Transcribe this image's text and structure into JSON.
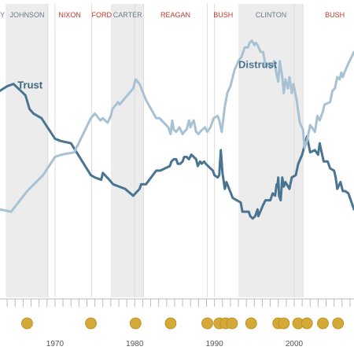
{
  "chart_data": {
    "type": "line",
    "xlim": [
      1963.1,
      2007.5
    ],
    "ylim": [
      0,
      100
    ],
    "x_ticks": [
      {
        "value": 1970,
        "label": "1970"
      },
      {
        "value": 1980,
        "label": "1980"
      },
      {
        "value": 1990,
        "label": "1990"
      },
      {
        "value": 2000,
        "label": "2000"
      }
    ],
    "presidencies": [
      {
        "label": "DY",
        "start": 1961.1,
        "end": 1963.9,
        "shaded": false,
        "party": "democrat"
      },
      {
        "label": "JOHNSON",
        "start": 1963.9,
        "end": 1969.1,
        "shaded": true,
        "party": "democrat"
      },
      {
        "label": "NIXON",
        "start": 1969.1,
        "end": 1974.6,
        "shaded": false,
        "party": "republican"
      },
      {
        "label": "FORD",
        "start": 1974.6,
        "end": 1977.1,
        "shaded": false,
        "party": "republican"
      },
      {
        "label": "CARTER",
        "start": 1977.1,
        "end": 1981.1,
        "shaded": true,
        "party": "democrat"
      },
      {
        "label": "REAGAN",
        "start": 1981.1,
        "end": 1989.1,
        "shaded": false,
        "party": "republican"
      },
      {
        "label": "BUSH",
        "start": 1989.1,
        "end": 1993.1,
        "shaded": false,
        "party": "republican"
      },
      {
        "label": "CLINTON",
        "start": 1993.1,
        "end": 2001.1,
        "shaded": true,
        "party": "democrat"
      },
      {
        "label": "BUSH",
        "start": 2001.1,
        "end": 2009.1,
        "shaded": false,
        "party": "republican"
      }
    ],
    "series": [
      {
        "name": "Trust",
        "color": "#4a7592",
        "points": [
          [
            1963.1,
            74
          ],
          [
            1964.0,
            76
          ],
          [
            1964.8,
            77
          ],
          [
            1966.3,
            72
          ],
          [
            1966.8,
            66
          ],
          [
            1967.3,
            64
          ],
          [
            1968.3,
            62
          ],
          [
            1970.0,
            53
          ],
          [
            1970.7,
            52
          ],
          [
            1972.0,
            51
          ],
          [
            1974.5,
            37
          ],
          [
            1975.0,
            36
          ],
          [
            1975.8,
            35
          ],
          [
            1976.0,
            38
          ],
          [
            1976.8,
            35
          ],
          [
            1977.3,
            33
          ],
          [
            1978.8,
            31
          ],
          [
            1979.8,
            28
          ],
          [
            1980.6,
            31
          ],
          [
            1980.8,
            33
          ],
          [
            1981.4,
            33
          ],
          [
            1982.7,
            39
          ],
          [
            1983.2,
            39
          ],
          [
            1984.4,
            41
          ],
          [
            1984.6,
            43
          ],
          [
            1984.9,
            44
          ],
          [
            1985.2,
            44
          ],
          [
            1985.4,
            42
          ],
          [
            1985.7,
            42
          ],
          [
            1986.0,
            43
          ],
          [
            1986.2,
            45
          ],
          [
            1986.5,
            45
          ],
          [
            1986.8,
            44
          ],
          [
            1987.1,
            46
          ],
          [
            1987.4,
            45
          ],
          [
            1987.7,
            44
          ],
          [
            1987.9,
            41
          ],
          [
            1988.2,
            43
          ],
          [
            1988.4,
            42
          ],
          [
            1988.7,
            43
          ],
          [
            1988.9,
            42
          ],
          [
            1989.8,
            39
          ],
          [
            1990.0,
            37
          ],
          [
            1990.4,
            36
          ],
          [
            1990.6,
            37
          ],
          [
            1990.8,
            48
          ],
          [
            1991.0,
            38
          ],
          [
            1991.3,
            31
          ],
          [
            1991.5,
            34
          ],
          [
            1992.3,
            27
          ],
          [
            1992.8,
            26
          ],
          [
            1993.3,
            25
          ],
          [
            1993.5,
            21
          ],
          [
            1994.3,
            21
          ],
          [
            1994.5,
            19
          ],
          [
            1994.8,
            18
          ],
          [
            1995.1,
            19
          ],
          [
            1995.4,
            22
          ],
          [
            1995.5,
            19
          ],
          [
            1996.1,
            24
          ],
          [
            1996.4,
            26
          ],
          [
            1996.7,
            26
          ],
          [
            1997.0,
            26
          ],
          [
            1997.3,
            29
          ],
          [
            1997.6,
            28
          ],
          [
            1997.8,
            33
          ],
          [
            1997.9,
            32
          ],
          [
            1998.0,
            36
          ],
          [
            1998.1,
            28
          ],
          [
            1998.3,
            26
          ],
          [
            1998.5,
            36
          ],
          [
            1998.7,
            32
          ],
          [
            1998.9,
            34
          ],
          [
            1999.4,
            31
          ],
          [
            1999.7,
            36
          ],
          [
            2000.2,
            37
          ],
          [
            2000.5,
            42
          ],
          [
            2001.0,
            46
          ],
          [
            2001.6,
            54
          ],
          [
            2002.0,
            47
          ],
          [
            2002.6,
            48
          ],
          [
            2003.0,
            46
          ],
          [
            2003.2,
            51
          ],
          [
            2003.5,
            46
          ],
          [
            2003.7,
            43
          ],
          [
            2004.2,
            43
          ],
          [
            2004.5,
            40
          ],
          [
            2005.0,
            39
          ],
          [
            2005.2,
            36
          ],
          [
            2005.4,
            31
          ],
          [
            2005.8,
            34
          ],
          [
            2006.1,
            30
          ],
          [
            2006.4,
            30
          ],
          [
            2006.8,
            29
          ],
          [
            2007.5,
            22
          ]
        ]
      },
      {
        "name": "Distrust",
        "color": "#a8c2d4",
        "points": [
          [
            1963.1,
            22
          ],
          [
            1964.5,
            21
          ],
          [
            1966.5,
            30
          ],
          [
            1968.5,
            37
          ],
          [
            1970.0,
            45
          ],
          [
            1970.8,
            46
          ],
          [
            1972.4,
            47
          ],
          [
            1974.5,
            62
          ],
          [
            1975.0,
            64
          ],
          [
            1975.7,
            61
          ],
          [
            1976.0,
            62
          ],
          [
            1976.6,
            60
          ],
          [
            1977.0,
            63
          ],
          [
            1977.2,
            66
          ],
          [
            1977.9,
            69
          ],
          [
            1978.1,
            68
          ],
          [
            1979.8,
            75
          ],
          [
            1980.1,
            79
          ],
          [
            1980.6,
            77
          ],
          [
            1981.4,
            70
          ],
          [
            1982.7,
            62
          ],
          [
            1983.1,
            62
          ],
          [
            1984.2,
            58
          ],
          [
            1984.5,
            55
          ],
          [
            1984.7,
            61
          ],
          [
            1984.9,
            57
          ],
          [
            1985.2,
            56
          ],
          [
            1985.6,
            58
          ],
          [
            1986.0,
            55
          ],
          [
            1986.2,
            56
          ],
          [
            1986.5,
            57
          ],
          [
            1986.8,
            61
          ],
          [
            1987.0,
            58
          ],
          [
            1987.2,
            60
          ],
          [
            1987.4,
            61
          ],
          [
            1987.7,
            56
          ],
          [
            1988.0,
            55
          ],
          [
            1988.2,
            56
          ],
          [
            1988.5,
            57
          ],
          [
            1988.8,
            58
          ],
          [
            1989.1,
            56
          ],
          [
            1989.5,
            58
          ],
          [
            1989.9,
            62
          ],
          [
            1990.4,
            63
          ],
          [
            1990.6,
            61
          ],
          [
            1990.9,
            56
          ],
          [
            1991.3,
            67
          ],
          [
            1991.6,
            73
          ],
          [
            1992.0,
            76
          ],
          [
            1992.5,
            83
          ],
          [
            1993.0,
            87
          ],
          [
            1993.4,
            89
          ],
          [
            1993.8,
            93
          ],
          [
            1994.2,
            93
          ],
          [
            1994.4,
            95
          ],
          [
            1994.7,
            96
          ],
          [
            1995.0,
            94
          ],
          [
            1995.2,
            95
          ],
          [
            1995.4,
            94
          ],
          [
            1995.8,
            91
          ],
          [
            1996.1,
            91
          ],
          [
            1996.4,
            85
          ],
          [
            1996.8,
            86
          ],
          [
            1997.0,
            84
          ],
          [
            1997.3,
            85
          ],
          [
            1997.5,
            87
          ],
          [
            1997.8,
            81
          ],
          [
            1998.0,
            78
          ],
          [
            1998.2,
            87
          ],
          [
            1998.5,
            80
          ],
          [
            1998.7,
            73
          ],
          [
            1998.9,
            79
          ],
          [
            1999.2,
            75
          ],
          [
            1999.4,
            80
          ],
          [
            1999.7,
            73
          ],
          [
            1999.9,
            77
          ],
          [
            2000.3,
            70
          ],
          [
            2000.7,
            60
          ],
          [
            2001.1,
            57
          ],
          [
            2001.3,
            49
          ],
          [
            2001.6,
            52
          ],
          [
            2002.0,
            59
          ],
          [
            2002.6,
            56
          ],
          [
            2002.9,
            63
          ],
          [
            2003.2,
            61
          ],
          [
            2003.6,
            65
          ],
          [
            2003.8,
            68
          ],
          [
            2004.5,
            69
          ],
          [
            2004.8,
            74
          ],
          [
            2005.1,
            75
          ],
          [
            2005.4,
            80
          ],
          [
            2005.7,
            79
          ],
          [
            2005.9,
            82
          ],
          [
            2006.1,
            80
          ],
          [
            2006.3,
            82
          ],
          [
            2006.8,
            86
          ],
          [
            2007.5,
            91
          ]
        ]
      }
    ],
    "event_markers": [
      1966.5,
      1974.5,
      1980.1,
      1984.5,
      1989.1,
      1990.6,
      1991.4,
      1992.2,
      1994.6,
      1998.0,
      1998.7,
      2000.5,
      2001.6,
      2003.6,
      2005.5
    ],
    "label_positions": {
      "Trust": {
        "x": 1965.3,
        "y": 75
      },
      "Distrust": {
        "x": 1993.0,
        "y": 84
      }
    },
    "colors": {
      "shade": "#ececec",
      "democrat_label": "#6b7b8a",
      "republican_label": "#c0392b",
      "marker": "#d4a937",
      "marker_stroke": "#b58c22",
      "axis": "#bbbbbb",
      "gridline": "#dddddd"
    }
  }
}
